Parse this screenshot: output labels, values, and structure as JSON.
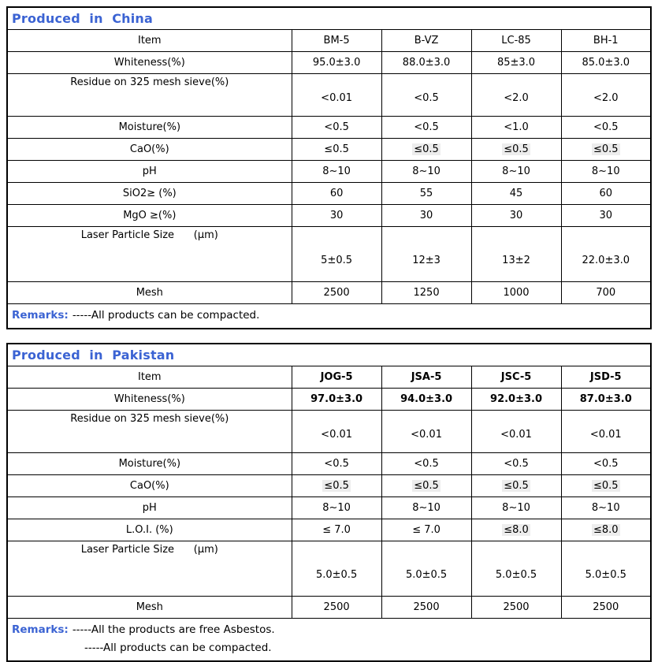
{
  "page": {
    "accent_color": "#3b63d3",
    "highlight_color": "#ededed",
    "border_color": "#000000"
  },
  "tables": [
    {
      "title": "Produced  in  China",
      "header": [
        "Item",
        "BM-5",
        "B-VZ",
        "LC-85",
        "BH-1"
      ],
      "header_bold": false,
      "rows": [
        {
          "label": "Whiteness(%)",
          "values": [
            "95.0±3.0",
            "88.0±3.0",
            "85±3.0",
            "85.0±3.0"
          ]
        },
        {
          "label": "Residue on 325 mesh sieve(%)",
          "tall": "a",
          "values": [
            "<0.01",
            "<0.5",
            "<2.0",
            "<2.0"
          ]
        },
        {
          "label": "Moisture(%)",
          "values": [
            "<0.5",
            "<0.5",
            "<1.0",
            "<0.5"
          ]
        },
        {
          "label": "CaO(%)",
          "values": [
            "≤0.5",
            "≤0.5",
            "≤0.5",
            "≤0.5"
          ],
          "highlight": [
            false,
            true,
            true,
            true
          ]
        },
        {
          "label": "pH",
          "values": [
            "8~10",
            "8~10",
            "8~10",
            "8~10"
          ]
        },
        {
          "label": "SiO2≥ (%)",
          "values": [
            "60",
            "55",
            "45",
            "60"
          ]
        },
        {
          "label": "MgO ≥(%)",
          "values": [
            "30",
            "30",
            "30",
            "30"
          ]
        },
        {
          "label": "Laser Particle Size      (μm)",
          "tall": "b",
          "values": [
            "5±0.5",
            "12±3",
            "13±2",
            "22.0±3.0"
          ]
        },
        {
          "label": "Mesh",
          "values": [
            "2500",
            "1250",
            "1000",
            "700"
          ]
        }
      ],
      "remarks_label": "Remarks:",
      "remarks_lines": [
        "-----All products can be compacted."
      ]
    },
    {
      "title": "Produced  in  Pakistan",
      "header": [
        "Item",
        "JOG-5",
        "JSA-5",
        "JSC-5",
        "JSD-5"
      ],
      "header_bold": true,
      "rows": [
        {
          "label": "Whiteness(%)",
          "values_bold": true,
          "values": [
            "97.0±3.0",
            "94.0±3.0",
            "92.0±3.0",
            "87.0±3.0"
          ]
        },
        {
          "label": "Residue on 325 mesh sieve(%)",
          "tall": "a",
          "values": [
            "<0.01",
            "<0.01",
            "<0.01",
            "<0.01"
          ]
        },
        {
          "label": "Moisture(%)",
          "values": [
            "<0.5",
            "<0.5",
            "<0.5",
            "<0.5"
          ]
        },
        {
          "label": "CaO(%)",
          "values": [
            "≤0.5",
            "≤0.5",
            "≤0.5",
            "≤0.5"
          ],
          "highlight": [
            true,
            true,
            true,
            true
          ]
        },
        {
          "label": "pH",
          "values": [
            "8~10",
            "8~10",
            "8~10",
            "8~10"
          ]
        },
        {
          "label": "L.O.I. (%)",
          "values": [
            "≤ 7.0",
            "≤ 7.0",
            "≤8.0",
            "≤8.0"
          ],
          "highlight": [
            false,
            false,
            true,
            true
          ]
        },
        {
          "label": "Laser Particle Size      (μm)",
          "tall": "b",
          "values": [
            "5.0±0.5",
            "5.0±0.5",
            "5.0±0.5",
            "5.0±0.5"
          ]
        },
        {
          "label": "Mesh",
          "values": [
            "2500",
            "2500",
            "2500",
            "2500"
          ]
        }
      ],
      "remarks_label": "Remarks:",
      "remarks_lines": [
        "-----All the products are free Asbestos.",
        "-----All products can be compacted."
      ]
    }
  ]
}
